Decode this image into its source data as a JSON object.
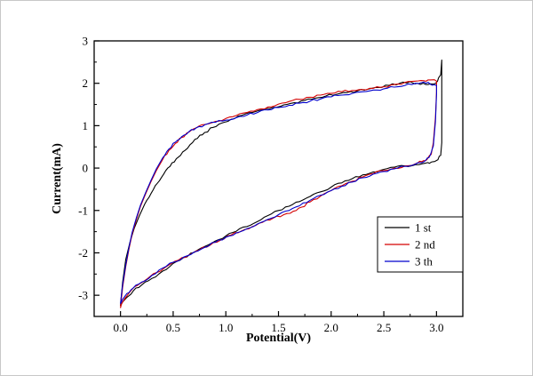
{
  "figure": {
    "background_color": "#ffffff",
    "axis_color": "#000000"
  },
  "chart_data": {
    "type": "line",
    "chart_kind": "cyclic-voltammogram",
    "title": "",
    "xlabel": "Potential(V)",
    "ylabel": "Current(mA)",
    "xlim": [
      -0.25,
      3.25
    ],
    "ylim": [
      -3.5,
      3
    ],
    "grid": false,
    "x_ticks": [
      0.0,
      0.5,
      1.0,
      1.5,
      2.0,
      2.5,
      3.0
    ],
    "x_tick_labels": [
      "0.0",
      "0.5",
      "1.0",
      "1.5",
      "2.0",
      "2.5",
      "3.0"
    ],
    "x_minor_ticks": [
      0.25,
      0.75,
      1.25,
      1.75,
      2.25,
      2.75
    ],
    "y_ticks": [
      -3,
      -2,
      -1,
      0,
      1,
      2,
      3
    ],
    "y_tick_labels": [
      "-3",
      "-2",
      "-1",
      "0",
      "1",
      "2",
      "3"
    ],
    "y_minor_ticks": [
      -2.5,
      -1.5,
      -0.5,
      0.5,
      1.5,
      2.5
    ],
    "legend": {
      "position": "lower-right",
      "border": true,
      "entries": [
        {
          "label": "1 st",
          "color": "#000000"
        },
        {
          "label": "2 nd",
          "color": "#d40000"
        },
        {
          "label": "3 th",
          "color": "#0000cc"
        }
      ]
    },
    "series": [
      {
        "name": "1 st",
        "color": "#000000",
        "points": [
          [
            0.0,
            -3.25
          ],
          [
            0.02,
            -2.7
          ],
          [
            0.05,
            -2.15
          ],
          [
            0.09,
            -1.75
          ],
          [
            0.13,
            -1.42
          ],
          [
            0.18,
            -1.12
          ],
          [
            0.23,
            -0.85
          ],
          [
            0.29,
            -0.6
          ],
          [
            0.35,
            -0.36
          ],
          [
            0.41,
            -0.14
          ],
          [
            0.47,
            0.04
          ],
          [
            0.53,
            0.22
          ],
          [
            0.59,
            0.38
          ],
          [
            0.66,
            0.55
          ],
          [
            0.73,
            0.7
          ],
          [
            0.8,
            0.84
          ],
          [
            0.88,
            0.96
          ],
          [
            0.96,
            1.06
          ],
          [
            1.05,
            1.15
          ],
          [
            1.15,
            1.24
          ],
          [
            1.25,
            1.31
          ],
          [
            1.35,
            1.37
          ],
          [
            1.45,
            1.43
          ],
          [
            1.55,
            1.49
          ],
          [
            1.65,
            1.54
          ],
          [
            1.75,
            1.6
          ],
          [
            1.85,
            1.65
          ],
          [
            1.95,
            1.7
          ],
          [
            2.05,
            1.74
          ],
          [
            2.15,
            1.78
          ],
          [
            2.25,
            1.82
          ],
          [
            2.35,
            1.86
          ],
          [
            2.45,
            1.9
          ],
          [
            2.55,
            1.95
          ],
          [
            2.65,
            2.0
          ],
          [
            2.75,
            2.04
          ],
          [
            2.82,
            2.0
          ],
          [
            2.9,
            1.97
          ],
          [
            2.96,
            1.98
          ],
          [
            3.01,
            2.05
          ],
          [
            3.04,
            2.2
          ],
          [
            3.05,
            2.55
          ],
          [
            3.05,
            1.6
          ],
          [
            3.05,
            0.6
          ],
          [
            3.04,
            0.3
          ],
          [
            3.0,
            0.18
          ],
          [
            2.95,
            0.14
          ],
          [
            2.9,
            0.12
          ],
          [
            2.8,
            0.08
          ],
          [
            2.7,
            0.05
          ],
          [
            2.6,
            0.02
          ],
          [
            2.5,
            -0.03
          ],
          [
            2.4,
            -0.09
          ],
          [
            2.3,
            -0.16
          ],
          [
            2.2,
            -0.25
          ],
          [
            2.1,
            -0.35
          ],
          [
            2.0,
            -0.45
          ],
          [
            1.9,
            -0.56
          ],
          [
            1.8,
            -0.67
          ],
          [
            1.7,
            -0.79
          ],
          [
            1.6,
            -0.9
          ],
          [
            1.5,
            -1.0
          ],
          [
            1.4,
            -1.12
          ],
          [
            1.3,
            -1.26
          ],
          [
            1.2,
            -1.38
          ],
          [
            1.1,
            -1.49
          ],
          [
            1.0,
            -1.6
          ],
          [
            0.9,
            -1.72
          ],
          [
            0.8,
            -1.85
          ],
          [
            0.7,
            -1.99
          ],
          [
            0.6,
            -2.11
          ],
          [
            0.5,
            -2.25
          ],
          [
            0.4,
            -2.43
          ],
          [
            0.3,
            -2.6
          ],
          [
            0.2,
            -2.76
          ],
          [
            0.12,
            -2.9
          ],
          [
            0.06,
            -3.05
          ],
          [
            0.02,
            -3.16
          ],
          [
            0.0,
            -3.25
          ]
        ]
      },
      {
        "name": "2 nd",
        "color": "#d40000",
        "points": [
          [
            0.0,
            -3.3
          ],
          [
            0.02,
            -2.82
          ],
          [
            0.05,
            -2.32
          ],
          [
            0.08,
            -1.92
          ],
          [
            0.11,
            -1.56
          ],
          [
            0.15,
            -1.22
          ],
          [
            0.19,
            -0.9
          ],
          [
            0.24,
            -0.6
          ],
          [
            0.29,
            -0.32
          ],
          [
            0.34,
            -0.06
          ],
          [
            0.4,
            0.2
          ],
          [
            0.46,
            0.42
          ],
          [
            0.52,
            0.58
          ],
          [
            0.58,
            0.72
          ],
          [
            0.65,
            0.85
          ],
          [
            0.72,
            0.95
          ],
          [
            0.8,
            1.03
          ],
          [
            0.9,
            1.1
          ],
          [
            1.0,
            1.17
          ],
          [
            1.1,
            1.24
          ],
          [
            1.2,
            1.31
          ],
          [
            1.3,
            1.38
          ],
          [
            1.4,
            1.44
          ],
          [
            1.5,
            1.51
          ],
          [
            1.6,
            1.57
          ],
          [
            1.7,
            1.62
          ],
          [
            1.8,
            1.67
          ],
          [
            1.9,
            1.72
          ],
          [
            2.0,
            1.76
          ],
          [
            2.1,
            1.8
          ],
          [
            2.2,
            1.83
          ],
          [
            2.3,
            1.85
          ],
          [
            2.4,
            1.88
          ],
          [
            2.5,
            1.92
          ],
          [
            2.6,
            1.97
          ],
          [
            2.7,
            2.02
          ],
          [
            2.8,
            2.05
          ],
          [
            2.88,
            2.06
          ],
          [
            2.94,
            2.08
          ],
          [
            3.0,
            2.05
          ],
          [
            3.0,
            1.8
          ],
          [
            2.99,
            1.2
          ],
          [
            2.97,
            0.6
          ],
          [
            2.95,
            0.32
          ],
          [
            2.91,
            0.2
          ],
          [
            2.86,
            0.15
          ],
          [
            2.8,
            0.1
          ],
          [
            2.7,
            0.05
          ],
          [
            2.6,
            0.0
          ],
          [
            2.5,
            -0.06
          ],
          [
            2.4,
            -0.13
          ],
          [
            2.3,
            -0.21
          ],
          [
            2.2,
            -0.31
          ],
          [
            2.1,
            -0.42
          ],
          [
            2.0,
            -0.53
          ],
          [
            1.9,
            -0.66
          ],
          [
            1.8,
            -0.8
          ],
          [
            1.72,
            -0.92
          ],
          [
            1.64,
            -1.02
          ],
          [
            1.55,
            -1.1
          ],
          [
            1.45,
            -1.18
          ],
          [
            1.35,
            -1.28
          ],
          [
            1.25,
            -1.38
          ],
          [
            1.15,
            -1.48
          ],
          [
            1.05,
            -1.58
          ],
          [
            0.95,
            -1.7
          ],
          [
            0.85,
            -1.82
          ],
          [
            0.75,
            -1.93
          ],
          [
            0.65,
            -2.05
          ],
          [
            0.55,
            -2.17
          ],
          [
            0.45,
            -2.3
          ],
          [
            0.35,
            -2.46
          ],
          [
            0.25,
            -2.62
          ],
          [
            0.16,
            -2.77
          ],
          [
            0.09,
            -2.92
          ],
          [
            0.04,
            -3.08
          ],
          [
            0.01,
            -3.2
          ],
          [
            0.0,
            -3.3
          ]
        ]
      },
      {
        "name": "3 th",
        "color": "#0000cc",
        "points": [
          [
            0.0,
            -3.2
          ],
          [
            0.02,
            -2.76
          ],
          [
            0.05,
            -2.28
          ],
          [
            0.08,
            -1.88
          ],
          [
            0.11,
            -1.52
          ],
          [
            0.15,
            -1.18
          ],
          [
            0.19,
            -0.87
          ],
          [
            0.24,
            -0.57
          ],
          [
            0.29,
            -0.29
          ],
          [
            0.34,
            -0.02
          ],
          [
            0.4,
            0.24
          ],
          [
            0.46,
            0.45
          ],
          [
            0.52,
            0.61
          ],
          [
            0.58,
            0.74
          ],
          [
            0.65,
            0.86
          ],
          [
            0.72,
            0.95
          ],
          [
            0.8,
            1.02
          ],
          [
            0.9,
            1.08
          ],
          [
            1.0,
            1.13
          ],
          [
            1.1,
            1.19
          ],
          [
            1.2,
            1.25
          ],
          [
            1.3,
            1.31
          ],
          [
            1.4,
            1.37
          ],
          [
            1.5,
            1.43
          ],
          [
            1.6,
            1.48
          ],
          [
            1.7,
            1.53
          ],
          [
            1.8,
            1.58
          ],
          [
            1.9,
            1.63
          ],
          [
            2.0,
            1.68
          ],
          [
            2.1,
            1.72
          ],
          [
            2.2,
            1.76
          ],
          [
            2.3,
            1.8
          ],
          [
            2.4,
            1.84
          ],
          [
            2.5,
            1.87
          ],
          [
            2.6,
            1.91
          ],
          [
            2.7,
            1.95
          ],
          [
            2.8,
            2.0
          ],
          [
            2.88,
            2.03
          ],
          [
            2.94,
            1.98
          ],
          [
            3.0,
            1.95
          ],
          [
            3.0,
            1.75
          ],
          [
            2.99,
            1.1
          ],
          [
            2.97,
            0.52
          ],
          [
            2.94,
            0.3
          ],
          [
            2.9,
            0.19
          ],
          [
            2.85,
            0.13
          ],
          [
            2.8,
            0.09
          ],
          [
            2.7,
            0.04
          ],
          [
            2.6,
            -0.02
          ],
          [
            2.5,
            -0.08
          ],
          [
            2.4,
            -0.14
          ],
          [
            2.3,
            -0.23
          ],
          [
            2.2,
            -0.33
          ],
          [
            2.1,
            -0.43
          ],
          [
            2.0,
            -0.53
          ],
          [
            1.9,
            -0.64
          ],
          [
            1.8,
            -0.76
          ],
          [
            1.7,
            -0.89
          ],
          [
            1.6,
            -1.0
          ],
          [
            1.5,
            -1.1
          ],
          [
            1.4,
            -1.21
          ],
          [
            1.3,
            -1.32
          ],
          [
            1.2,
            -1.43
          ],
          [
            1.1,
            -1.53
          ],
          [
            1.0,
            -1.63
          ],
          [
            0.9,
            -1.75
          ],
          [
            0.8,
            -1.87
          ],
          [
            0.7,
            -1.98
          ],
          [
            0.6,
            -2.1
          ],
          [
            0.5,
            -2.22
          ],
          [
            0.4,
            -2.36
          ],
          [
            0.3,
            -2.53
          ],
          [
            0.2,
            -2.69
          ],
          [
            0.12,
            -2.83
          ],
          [
            0.06,
            -2.96
          ],
          [
            0.02,
            -3.1
          ],
          [
            0.0,
            -3.2
          ]
        ]
      }
    ]
  }
}
